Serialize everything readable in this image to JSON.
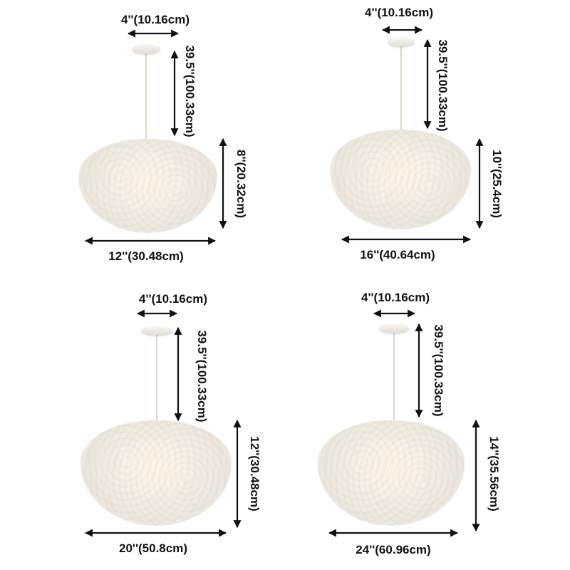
{
  "panels": [
    {
      "canopy_width": "4''(10.16cm)",
      "drop_length": "39.5''(100.33cm)",
      "height": "8''(20.32cm)",
      "diameter": "12''(30.48cm)"
    },
    {
      "canopy_width": "4''(10.16cm)",
      "drop_length": "39.5''(100.33cm)",
      "height": "10''(25.4cm)",
      "diameter": "16''(40.64cm)"
    },
    {
      "canopy_width": "4''(10.16cm)",
      "drop_length": "39.5''(100.33cm)",
      "height": "12''(30.48cm)",
      "diameter": "20''(50.8cm)"
    },
    {
      "canopy_width": "4''(10.16cm)",
      "drop_length": "39.5''(100.33cm)",
      "height": "14''(35.56cm)",
      "diameter": "24''(60.96cm)"
    }
  ],
  "colors": {
    "text": "#111111",
    "feather": "#f3eee7",
    "background": "#ffffff"
  }
}
